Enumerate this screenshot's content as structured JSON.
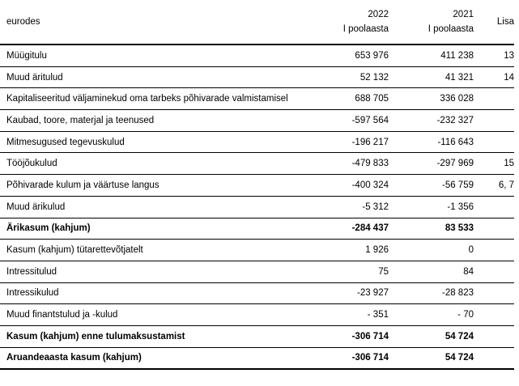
{
  "table": {
    "unit_label": "eurodes",
    "lisa_label": "Lisa",
    "columns": [
      {
        "year": "2022",
        "period": "I poolaasta"
      },
      {
        "year": "2021",
        "period": "I poolaasta"
      }
    ],
    "rows": [
      {
        "label": "Müügitulu",
        "v2022": "653 976",
        "v2021": "411 238",
        "lisa": "13",
        "bold": false
      },
      {
        "label": "Muud äritulud",
        "v2022": "52 132",
        "v2021": "41 321",
        "lisa": "14",
        "bold": false
      },
      {
        "label": "Kapitaliseeritud väljaminekud oma tarbeks põhivarade valmistamisel",
        "v2022": "688 705",
        "v2021": "336 028",
        "lisa": "",
        "bold": false
      },
      {
        "label": "Kaubad, toore, materjal ja teenused",
        "v2022": "-597 564",
        "v2021": "-232 327",
        "lisa": "",
        "bold": false
      },
      {
        "label": "Mitmesugused tegevuskulud",
        "v2022": "-196 217",
        "v2021": "-116 643",
        "lisa": "",
        "bold": false
      },
      {
        "label": "Tööjõukulud",
        "v2022": "-479 833",
        "v2021": "-297 969",
        "lisa": "15",
        "bold": false
      },
      {
        "label": "Põhivarade kulum ja väärtuse langus",
        "v2022": "-400 324",
        "v2021": "-56 759",
        "lisa": "6, 7",
        "bold": false
      },
      {
        "label": "Muud ärikulud",
        "v2022": "-5 312",
        "v2021": "-1 356",
        "lisa": "",
        "bold": false
      },
      {
        "label": "Ärikasum (kahjum)",
        "v2022": "-284 437",
        "v2021": "83 533",
        "lisa": "",
        "bold": true
      },
      {
        "label": "Kasum (kahjum) tütarettevõtjatelt",
        "v2022": "1 926",
        "v2021": "0",
        "lisa": "",
        "bold": false
      },
      {
        "label": "Intressitulud",
        "v2022": "75",
        "v2021": "84",
        "lisa": "",
        "bold": false
      },
      {
        "label": "Intressikulud",
        "v2022": "-23 927",
        "v2021": "-28 823",
        "lisa": "",
        "bold": false
      },
      {
        "label": "Muud finantstulud ja -kulud",
        "v2022": "- 351",
        "v2021": "- 70",
        "lisa": "",
        "bold": false
      },
      {
        "label": "Kasum (kahjum) enne tulumaksustamist",
        "v2022": "-306 714",
        "v2021": "54 724",
        "lisa": "",
        "bold": true
      },
      {
        "label": "Aruandeaasta kasum (kahjum)",
        "v2022": "-306 714",
        "v2021": "54 724",
        "lisa": "",
        "bold": true
      }
    ]
  }
}
